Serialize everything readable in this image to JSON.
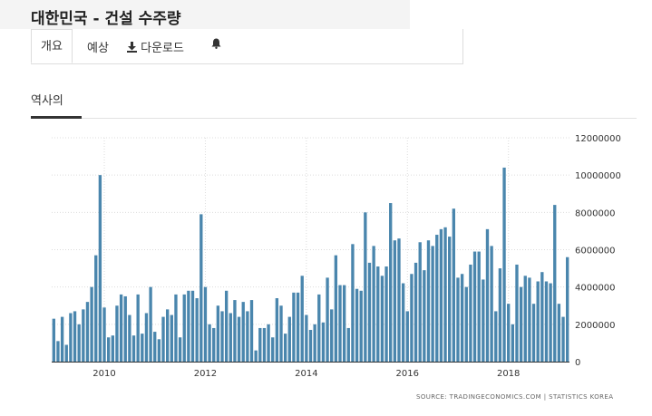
{
  "page": {
    "title": "대한민국 - 건설 수주량"
  },
  "tabs": [
    {
      "label": "개요",
      "active": true
    },
    {
      "label": "예상"
    },
    {
      "label": "다운로드",
      "icon": "download-icon"
    },
    {
      "icon": "bell-icon"
    }
  ],
  "subtab": {
    "label": "역사의"
  },
  "source": "SOURCE: TRADINGECONOMICS.COM  |  STATISTICS KOREA",
  "colors": {
    "bar": "#4a86ad",
    "grid": "#dcdcdc"
  },
  "chart_data": {
    "type": "bar",
    "ylim": [
      0,
      12000000
    ],
    "yticks": [
      "12000000",
      "10000000",
      "8000000",
      "6000000",
      "4000000",
      "2000000",
      "0"
    ],
    "xticks": [
      "2010",
      "2012",
      "2014",
      "2016",
      "2018"
    ],
    "grid": true,
    "start": "2009-01",
    "end": "2019-02",
    "values": [
      2300000,
      1100000,
      2400000,
      900000,
      2600000,
      2700000,
      2000000,
      2800000,
      3200000,
      4000000,
      5700000,
      10000000,
      2900000,
      1300000,
      1400000,
      3000000,
      3600000,
      3500000,
      2500000,
      1400000,
      3600000,
      1500000,
      2600000,
      4000000,
      1600000,
      1200000,
      2400000,
      2800000,
      2500000,
      3600000,
      1300000,
      3600000,
      3800000,
      3800000,
      3400000,
      7900000,
      4000000,
      2000000,
      1800000,
      3000000,
      2700000,
      3800000,
      2600000,
      3300000,
      2400000,
      3200000,
      2700000,
      3300000,
      600000,
      1800000,
      1800000,
      2000000,
      1300000,
      3400000,
      3000000,
      1500000,
      2400000,
      3700000,
      3700000,
      4600000,
      2500000,
      1700000,
      2000000,
      3600000,
      2100000,
      4500000,
      2800000,
      5700000,
      4100000,
      4100000,
      1800000,
      6300000,
      3900000,
      3800000,
      8000000,
      5300000,
      6200000,
      5100000,
      4600000,
      5100000,
      8500000,
      6500000,
      6600000,
      4200000,
      2700000,
      4700000,
      5300000,
      6400000,
      4900000,
      6500000,
      6200000,
      6800000,
      7100000,
      7200000,
      6700000,
      8200000,
      4500000,
      4700000,
      4000000,
      5200000,
      5900000,
      5900000,
      4400000,
      7100000,
      6200000,
      2700000,
      5000000,
      10400000,
      3100000,
      2000000,
      5200000,
      4000000,
      4600000,
      4500000,
      3100000,
      4300000,
      4800000,
      4300000,
      4200000,
      8400000,
      3100000,
      2400000,
      5600000
    ]
  }
}
